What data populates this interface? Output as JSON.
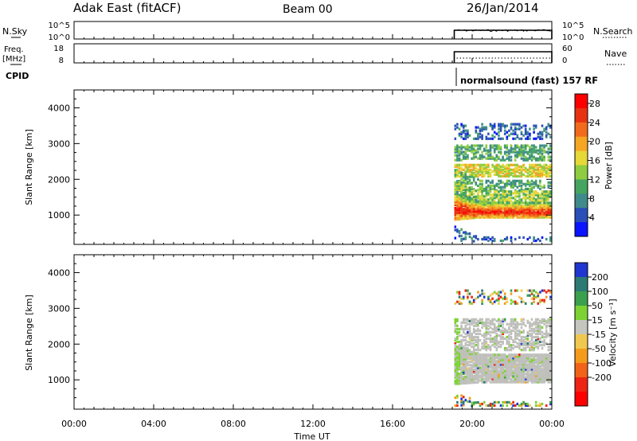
{
  "header": {
    "station": "Adak East (fitACF)",
    "beam": "Beam 00",
    "date": "26/Jan/2014"
  },
  "strips": {
    "nsky": {
      "label": "N.Sky",
      "ticks": [
        "10^5",
        "10^0"
      ]
    },
    "nsearch": {
      "label": "N.Search",
      "ticks": [
        "10^5",
        "10^0"
      ]
    },
    "freq": {
      "label_line1": "Freq.",
      "label_line2": "[MHz]",
      "ticks": [
        "18",
        "8"
      ]
    },
    "nave": {
      "label": "Nave",
      "ticks": [
        "60",
        "0"
      ]
    },
    "cpid": {
      "label": "CPID",
      "mode_text": "normalsound (fast) 157 RF"
    }
  },
  "colors": {
    "power_scale": [
      "#0a14ff",
      "#2a4fb8",
      "#3f8a8a",
      "#45a560",
      "#8fcc40",
      "#e6d838",
      "#f5a623",
      "#f26b1d",
      "#e83312",
      "#ff0000"
    ],
    "velocity_scale": [
      "#2036d0",
      "#2d7a74",
      "#3aa04d",
      "#7cd233",
      "#c6c6c0",
      "#f0c850",
      "#f59b1c",
      "#f2631a",
      "#ee2414",
      "#ff0000"
    ],
    "ground_scatter": "#bfbfbb"
  },
  "chart_data": [
    {
      "type": "heatmap",
      "name": "power",
      "ylabel": "Slant Range [km]",
      "ylim": [
        180,
        4500
      ],
      "yticks": [
        "4000",
        "3000",
        "2000",
        "1000"
      ],
      "xlim": [
        "00:00",
        "24:00"
      ],
      "data_start": "19:06",
      "colorbar": {
        "label": "Power [dB]",
        "ticks": [
          "28",
          "24",
          "20",
          "16",
          "12",
          "8",
          "4"
        ],
        "range": [
          0,
          30
        ]
      },
      "bands": [
        {
          "range_km": [
            3100,
            3550
          ],
          "value_db": 6,
          "coverage": 0.35
        },
        {
          "range_km": [
            2500,
            2950
          ],
          "value_db": 10,
          "coverage": 0.55
        },
        {
          "range_km": [
            2050,
            2400
          ],
          "value_db": 16,
          "coverage": 0.75
        },
        {
          "range_km": [
            1650,
            1950
          ],
          "value_db": 10,
          "coverage": 0.5
        },
        {
          "range_km": [
            1350,
            1650
          ],
          "value_db": 14,
          "coverage": 0.7
        },
        {
          "range_km": [
            900,
            1350
          ],
          "value_db": 26,
          "coverage": 0.95
        },
        {
          "range_km": [
            200,
            350
          ],
          "value_db": 6,
          "coverage": 0.35
        }
      ]
    },
    {
      "type": "heatmap",
      "name": "velocity",
      "ylabel": "Slant Range [km]",
      "ylim": [
        180,
        4500
      ],
      "yticks": [
        "4000",
        "3000",
        "2000",
        "1000"
      ],
      "xlim": [
        "00:00",
        "24:00"
      ],
      "data_start": "19:06",
      "colorbar": {
        "label": "Velocity [m s⁻¹]",
        "ticks": [
          "200",
          "100",
          "50",
          "15",
          "-15",
          "-50",
          "-100",
          "-200"
        ]
      },
      "bands": [
        {
          "range_km": [
            3100,
            3500
          ],
          "value": "mixed",
          "coverage": 0.25
        },
        {
          "range_km": [
            1800,
            2700
          ],
          "value": "ground",
          "coverage": 0.6
        },
        {
          "range_km": [
            900,
            1700
          ],
          "value": "ground",
          "coverage": 0.95
        },
        {
          "range_km": [
            200,
            350
          ],
          "value": "mixed",
          "coverage": 0.35
        }
      ]
    }
  ],
  "xaxis": {
    "ticks": [
      "00:00",
      "04:00",
      "08:00",
      "12:00",
      "16:00",
      "20:00",
      "00:00"
    ],
    "label": "Time UT"
  }
}
